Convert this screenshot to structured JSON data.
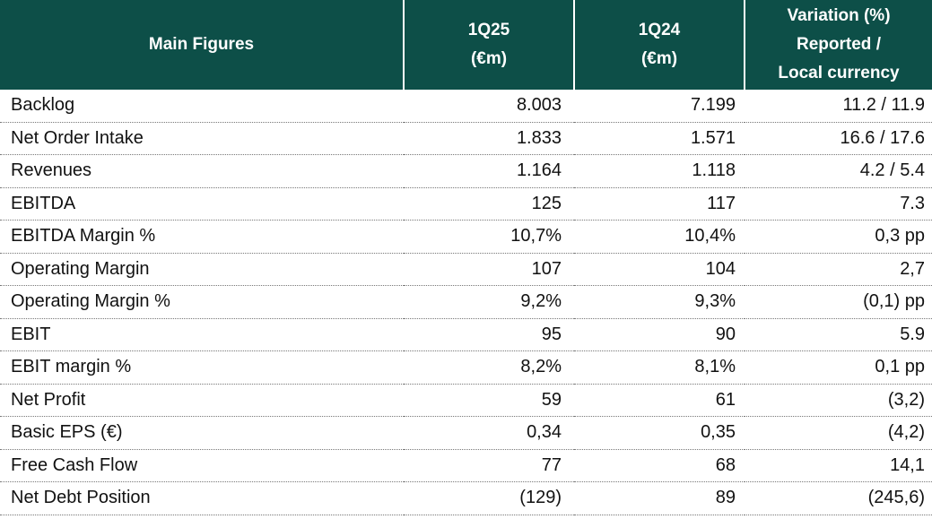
{
  "table": {
    "header": [
      [
        "Main Figures"
      ],
      [
        "1Q25",
        "(€m)"
      ],
      [
        "1Q24",
        "(€m)"
      ],
      [
        "Variation (%)",
        "Reported /",
        "Local currency"
      ]
    ],
    "rows": [
      [
        "Backlog",
        "8.003",
        "7.199",
        "11.2 / 11.9"
      ],
      [
        "Net Order Intake",
        "1.833",
        "1.571",
        "16.6 / 17.6"
      ],
      [
        "Revenues",
        "1.164",
        "1.118",
        "4.2 / 5.4"
      ],
      [
        "EBITDA",
        "125",
        "117",
        "7.3"
      ],
      [
        "EBITDA Margin %",
        "10,7%",
        "10,4%",
        "0,3 pp"
      ],
      [
        "Operating Margin",
        "107",
        "104",
        "2,7"
      ],
      [
        "Operating Margin %",
        "9,2%",
        "9,3%",
        "(0,1) pp"
      ],
      [
        "EBIT",
        "95",
        "90",
        "5.9"
      ],
      [
        "EBIT margin %",
        "8,2%",
        "8,1%",
        "0,1 pp"
      ],
      [
        "Net Profit",
        "59",
        "61",
        "(3,2)"
      ],
      [
        "Basic EPS (€)",
        "0,34",
        "0,35",
        "(4,2)"
      ],
      [
        "Free Cash Flow",
        "77",
        "68",
        "14,1"
      ],
      [
        "Net Debt Position",
        "(129)",
        "89",
        "(245,6)"
      ]
    ]
  }
}
